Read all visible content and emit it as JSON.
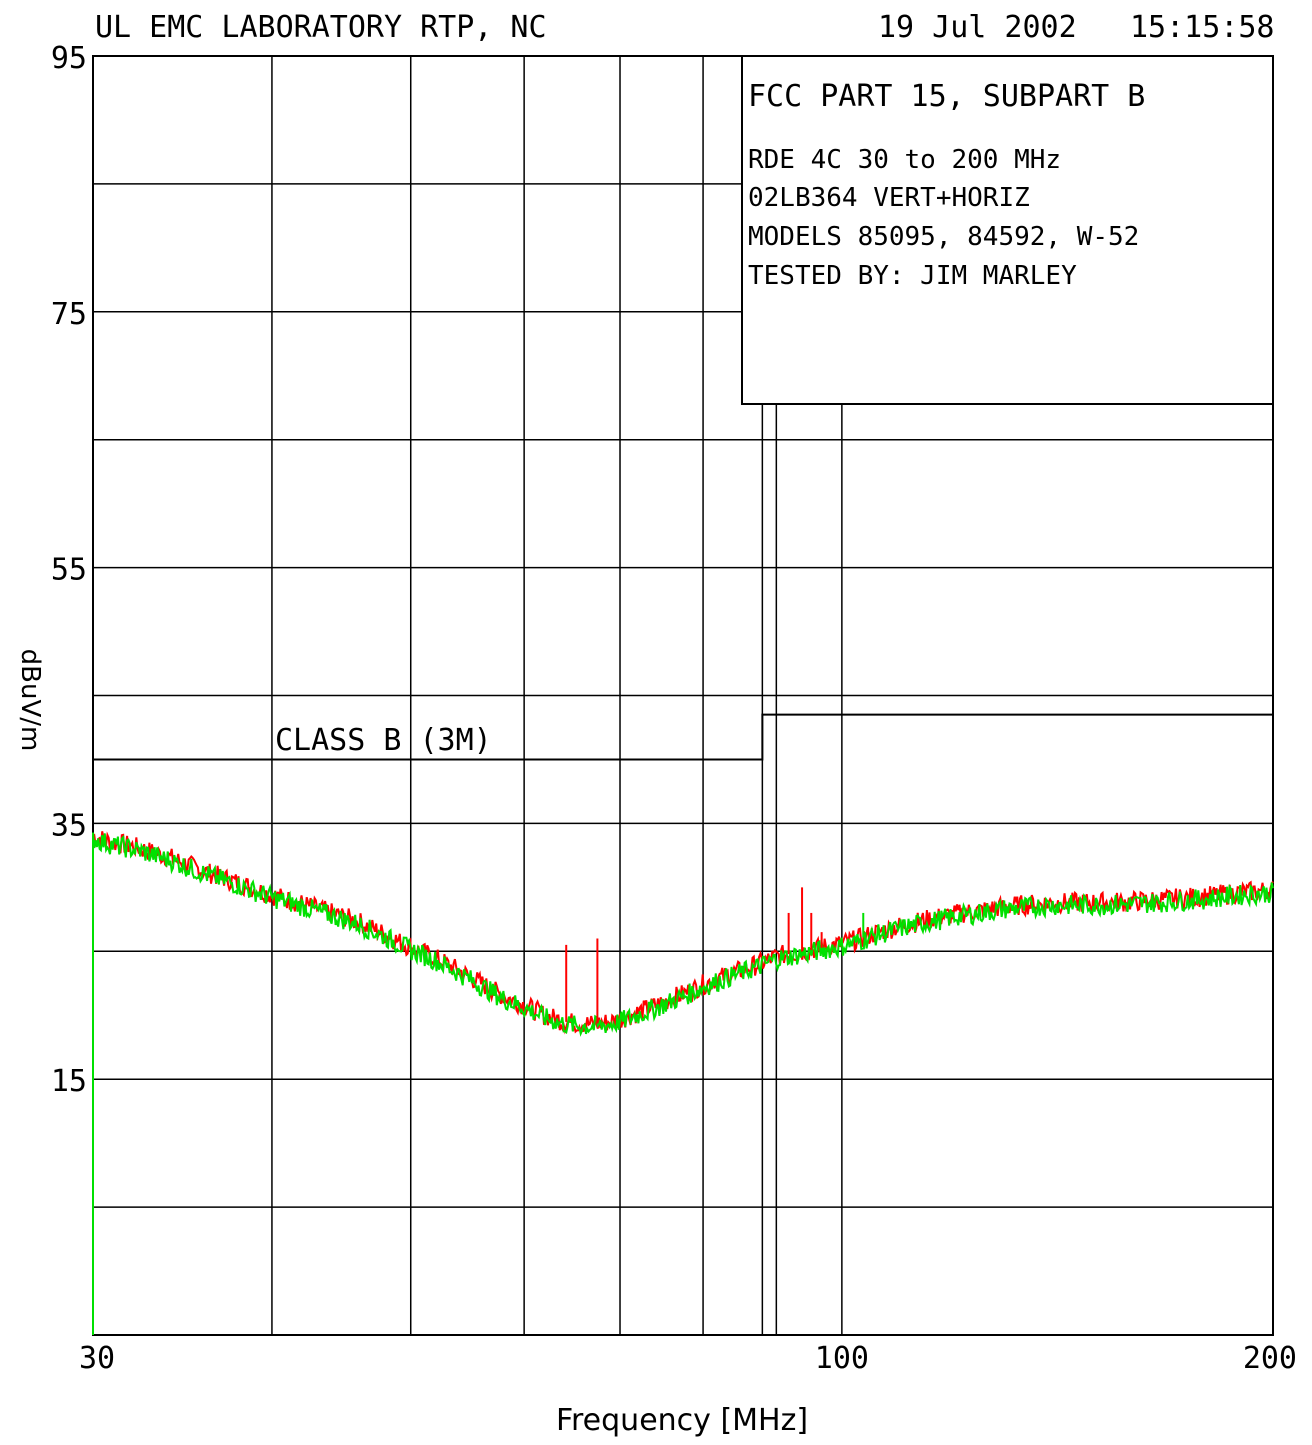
{
  "header": {
    "lab": "UL EMC LABORATORY RTP, NC",
    "date": "19 Jul 2002",
    "time": "15:15:58"
  },
  "info_box": {
    "standard": "FCC PART 15, SUBPART B",
    "line1": "RDE 4C 30 to 200 MHz",
    "line2": "02LB364 VERT+HORIZ",
    "line3": "MODELS 85095, 84592, W-52",
    "line4": "TESTED BY: JIM MARLEY"
  },
  "chart_data": {
    "type": "line",
    "xlabel": "Frequency [MHz]",
    "ylabel": "dBuV/m",
    "xscale": "log",
    "xlim": [
      30,
      200
    ],
    "ylim": [
      -5,
      95
    ],
    "x_tick_labels": [
      "30",
      "100",
      "200"
    ],
    "y_tick_labels": [
      "15",
      "35",
      "55",
      "75",
      "95"
    ],
    "x_gridlines": [
      30,
      40,
      50,
      60,
      70,
      80,
      88,
      90,
      100,
      200
    ],
    "y_gridlines": [
      5,
      15,
      25,
      35,
      45,
      55,
      65,
      75,
      85
    ],
    "grid": true,
    "limit_line": {
      "label": "CLASS B (3M)",
      "segments": [
        {
          "x": [
            30,
            88
          ],
          "y": 40
        },
        {
          "x": [
            88,
            200
          ],
          "y": 43.5
        }
      ]
    },
    "series": [
      {
        "color": "#ff0000",
        "x": [
          30,
          31,
          32,
          34,
          36,
          38,
          40,
          42,
          44,
          46,
          48,
          50,
          52,
          55,
          58,
          60,
          62,
          64,
          65,
          67,
          69,
          70,
          72,
          75,
          78,
          80,
          83,
          85,
          88,
          90,
          92,
          94,
          96,
          98,
          100,
          103,
          106,
          110,
          115,
          120,
          125,
          130,
          140,
          150,
          160,
          170,
          180,
          190,
          200
        ],
        "y": [
          34,
          33.5,
          33.2,
          32.3,
          31.2,
          30.3,
          29.4,
          28.7,
          28,
          27.3,
          26.3,
          25.3,
          24.5,
          23,
          21.5,
          20.8,
          20,
          19.5,
          19.4,
          19.3,
          19.5,
          19.7,
          20.2,
          21,
          21.8,
          22.4,
          23.1,
          23.5,
          24.1,
          24.6,
          24.8,
          25,
          25.2,
          25.4,
          25.6,
          26,
          26.5,
          27,
          27.5,
          27.9,
          28.2,
          28.5,
          28.8,
          28.8,
          28.9,
          29.1,
          29.3,
          29.6,
          29.8
        ]
      },
      {
        "color": "#00e000",
        "x": [
          30,
          31,
          32,
          34,
          36,
          38,
          40,
          42,
          44,
          46,
          48,
          50,
          52,
          55,
          58,
          60,
          62,
          64,
          65,
          67,
          69,
          70,
          72,
          75,
          78,
          80,
          83,
          85,
          88,
          90,
          92,
          94,
          96,
          98,
          100,
          103,
          106,
          110,
          115,
          120,
          125,
          130,
          140,
          150,
          160,
          170,
          180,
          190,
          200
        ],
        "y": [
          33.8,
          33.3,
          33,
          32.1,
          31,
          30.1,
          29.2,
          28.5,
          27.8,
          27.1,
          26.1,
          25.1,
          24.3,
          22.8,
          21.3,
          20.6,
          19.8,
          19.3,
          19.2,
          19.1,
          19.3,
          19.5,
          20,
          20.8,
          21.6,
          22.2,
          22.9,
          23.3,
          23.9,
          24.4,
          24.6,
          24.8,
          25,
          25.2,
          25.4,
          25.8,
          26.3,
          26.8,
          27.3,
          27.7,
          28,
          28.3,
          28.6,
          28.6,
          28.7,
          28.9,
          29.1,
          29.4,
          29.6
        ]
      }
    ],
    "spikes": [
      {
        "x": 64.2,
        "y": 25.5,
        "color": "#ff0000"
      },
      {
        "x": 67.5,
        "y": 26,
        "color": "#ff0000"
      },
      {
        "x": 91.8,
        "y": 28,
        "color": "#ff0000"
      },
      {
        "x": 93.8,
        "y": 30,
        "color": "#ff0000"
      },
      {
        "x": 95.2,
        "y": 28,
        "color": "#ff0000"
      },
      {
        "x": 96.8,
        "y": 26.5,
        "color": "#ff0000"
      },
      {
        "x": 103.5,
        "y": 28,
        "color": "#00e000"
      }
    ]
  }
}
